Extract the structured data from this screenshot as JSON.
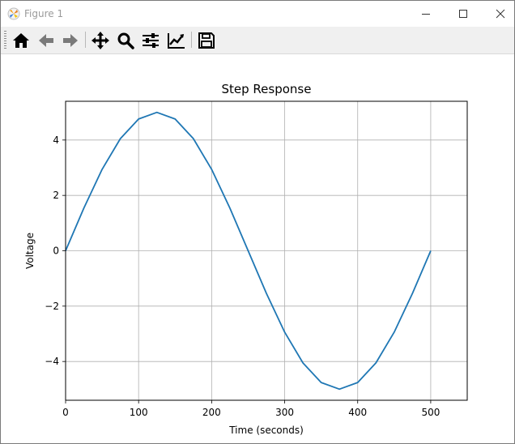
{
  "window": {
    "title": "Figure 1",
    "controls": [
      "minimize",
      "maximize",
      "close"
    ]
  },
  "toolbar": {
    "buttons": [
      {
        "name": "home",
        "icon": "home-icon"
      },
      {
        "name": "back",
        "icon": "arrow-left-icon"
      },
      {
        "name": "forward",
        "icon": "arrow-right-icon"
      },
      {
        "name": "pan",
        "icon": "move-icon"
      },
      {
        "name": "zoom",
        "icon": "magnifier-icon"
      },
      {
        "name": "configure-subplots",
        "icon": "sliders-icon"
      },
      {
        "name": "edit-axis",
        "icon": "line-chart-icon"
      },
      {
        "name": "save",
        "icon": "floppy-disk-icon"
      }
    ]
  },
  "chart_data": {
    "type": "line",
    "title": "Step Response",
    "xlabel": "Time (seconds)",
    "ylabel": "Voltage",
    "xlim": [
      0,
      550
    ],
    "ylim": [
      -5.4,
      5.4
    ],
    "xticks": [
      0,
      100,
      200,
      300,
      400,
      500
    ],
    "yticks": [
      4,
      2,
      0,
      -2,
      -4
    ],
    "ytick_labels": [
      "4",
      "2",
      "0",
      "−2",
      "−4"
    ],
    "grid": true,
    "series": [
      {
        "color": "#1f77b4",
        "x": [
          0,
          25,
          50,
          75,
          100,
          125,
          150,
          175,
          200,
          225,
          250,
          275,
          300,
          325,
          350,
          375,
          400,
          425,
          450,
          475,
          500
        ],
        "y": [
          0,
          1.54,
          2.94,
          4.05,
          4.76,
          5.0,
          4.76,
          4.05,
          2.94,
          1.54,
          0,
          -1.54,
          -2.94,
          -4.05,
          -4.76,
          -5.0,
          -4.76,
          -4.05,
          -2.94,
          -1.54,
          0
        ]
      }
    ]
  }
}
